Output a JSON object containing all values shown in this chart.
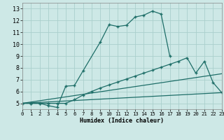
{
  "bg_color": "#cde8e6",
  "grid_color": "#aacfcc",
  "line_color": "#1e6e68",
  "xlabel": "Humidex (Indice chaleur)",
  "xlim": [
    0,
    23
  ],
  "ylim": [
    4.5,
    13.5
  ],
  "xticks": [
    0,
    1,
    2,
    3,
    4,
    5,
    6,
    7,
    8,
    9,
    10,
    11,
    12,
    13,
    14,
    15,
    16,
    17,
    18,
    19,
    20,
    21,
    22,
    23
  ],
  "yticks": [
    5,
    6,
    7,
    8,
    9,
    10,
    11,
    12,
    13
  ],
  "curve1_x": [
    0,
    1,
    2,
    3,
    4,
    5,
    6,
    7,
    9,
    10,
    11,
    12,
    13,
    14,
    15,
    16,
    17
  ],
  "curve1_y": [
    5,
    5,
    5,
    4.8,
    4.65,
    6.45,
    6.5,
    7.75,
    10.2,
    11.65,
    11.5,
    11.6,
    12.3,
    12.45,
    12.8,
    12.55,
    9.0
  ],
  "curve2_x": [
    0,
    1,
    2,
    3,
    4,
    5,
    6,
    7,
    8,
    9,
    10,
    11,
    12,
    13,
    14,
    15,
    16,
    17,
    18,
    19,
    20,
    21,
    22,
    23
  ],
  "curve2_y": [
    5,
    5,
    5,
    5,
    5,
    5,
    5.3,
    5.7,
    6.0,
    6.3,
    6.55,
    6.8,
    7.05,
    7.3,
    7.55,
    7.8,
    8.05,
    8.3,
    8.55,
    8.85,
    7.55,
    8.55,
    6.75,
    5.9
  ],
  "curve3_x": [
    0,
    23
  ],
  "curve3_y": [
    5.0,
    7.5
  ],
  "curve4_x": [
    0,
    23
  ],
  "curve4_y": [
    5.0,
    5.9
  ]
}
